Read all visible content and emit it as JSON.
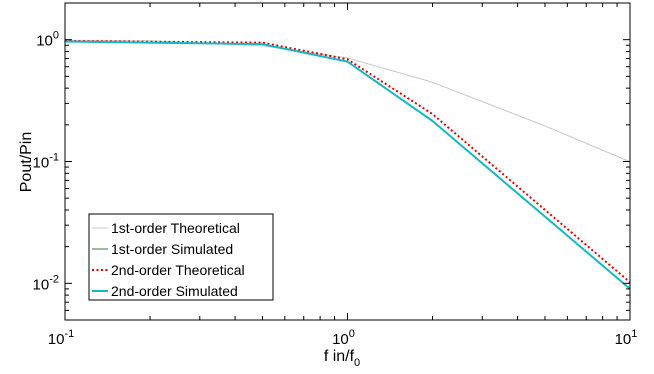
{
  "chart_data": {
    "type": "line",
    "xscale": "log",
    "yscale": "log",
    "xlim": [
      0.1,
      10
    ],
    "ylim": [
      0.005,
      2
    ],
    "xlabel": {
      "main": "f in/f",
      "sub": "0"
    },
    "ylabel": "Pout/Pin",
    "x_ticks": [
      {
        "base": "10",
        "exp": "-1",
        "value": 0.1
      },
      {
        "base": "10",
        "exp": "0",
        "value": 1
      },
      {
        "base": "10",
        "exp": "1",
        "value": 10
      }
    ],
    "y_ticks": [
      {
        "base": "10",
        "exp": "0",
        "value": 1
      },
      {
        "base": "10",
        "exp": "-1",
        "value": 0.1
      },
      {
        "base": "10",
        "exp": "-2",
        "value": 0.01
      }
    ],
    "legend_position": "lower-left",
    "series": [
      {
        "name": "1st-order Theoretical",
        "color": "#c8c8c8",
        "style": "solid",
        "x": [
          0.1,
          0.2,
          0.5,
          1,
          2,
          5,
          10
        ],
        "y": [
          0.99,
          0.98,
          0.89,
          0.707,
          0.447,
          0.196,
          0.0995
        ]
      },
      {
        "name": "1st-order Simulated",
        "color": "#2e7d32",
        "style": "solid",
        "x": [
          0.1,
          0.5,
          1,
          2,
          10
        ],
        "y": [
          0.965,
          0.92,
          0.66,
          0.215,
          0.009
        ]
      },
      {
        "name": "2nd-order Theoretical",
        "color": "#e00000",
        "style": "dotted",
        "x": [
          0.1,
          0.5,
          1,
          2,
          10
        ],
        "y": [
          0.975,
          0.945,
          0.69,
          0.245,
          0.0102
        ]
      },
      {
        "name": "2nd-order Simulated",
        "color": "#17b8c2",
        "style": "solid",
        "x": [
          0.1,
          0.5,
          1,
          2,
          10
        ],
        "y": [
          0.965,
          0.92,
          0.66,
          0.215,
          0.009
        ]
      }
    ]
  }
}
